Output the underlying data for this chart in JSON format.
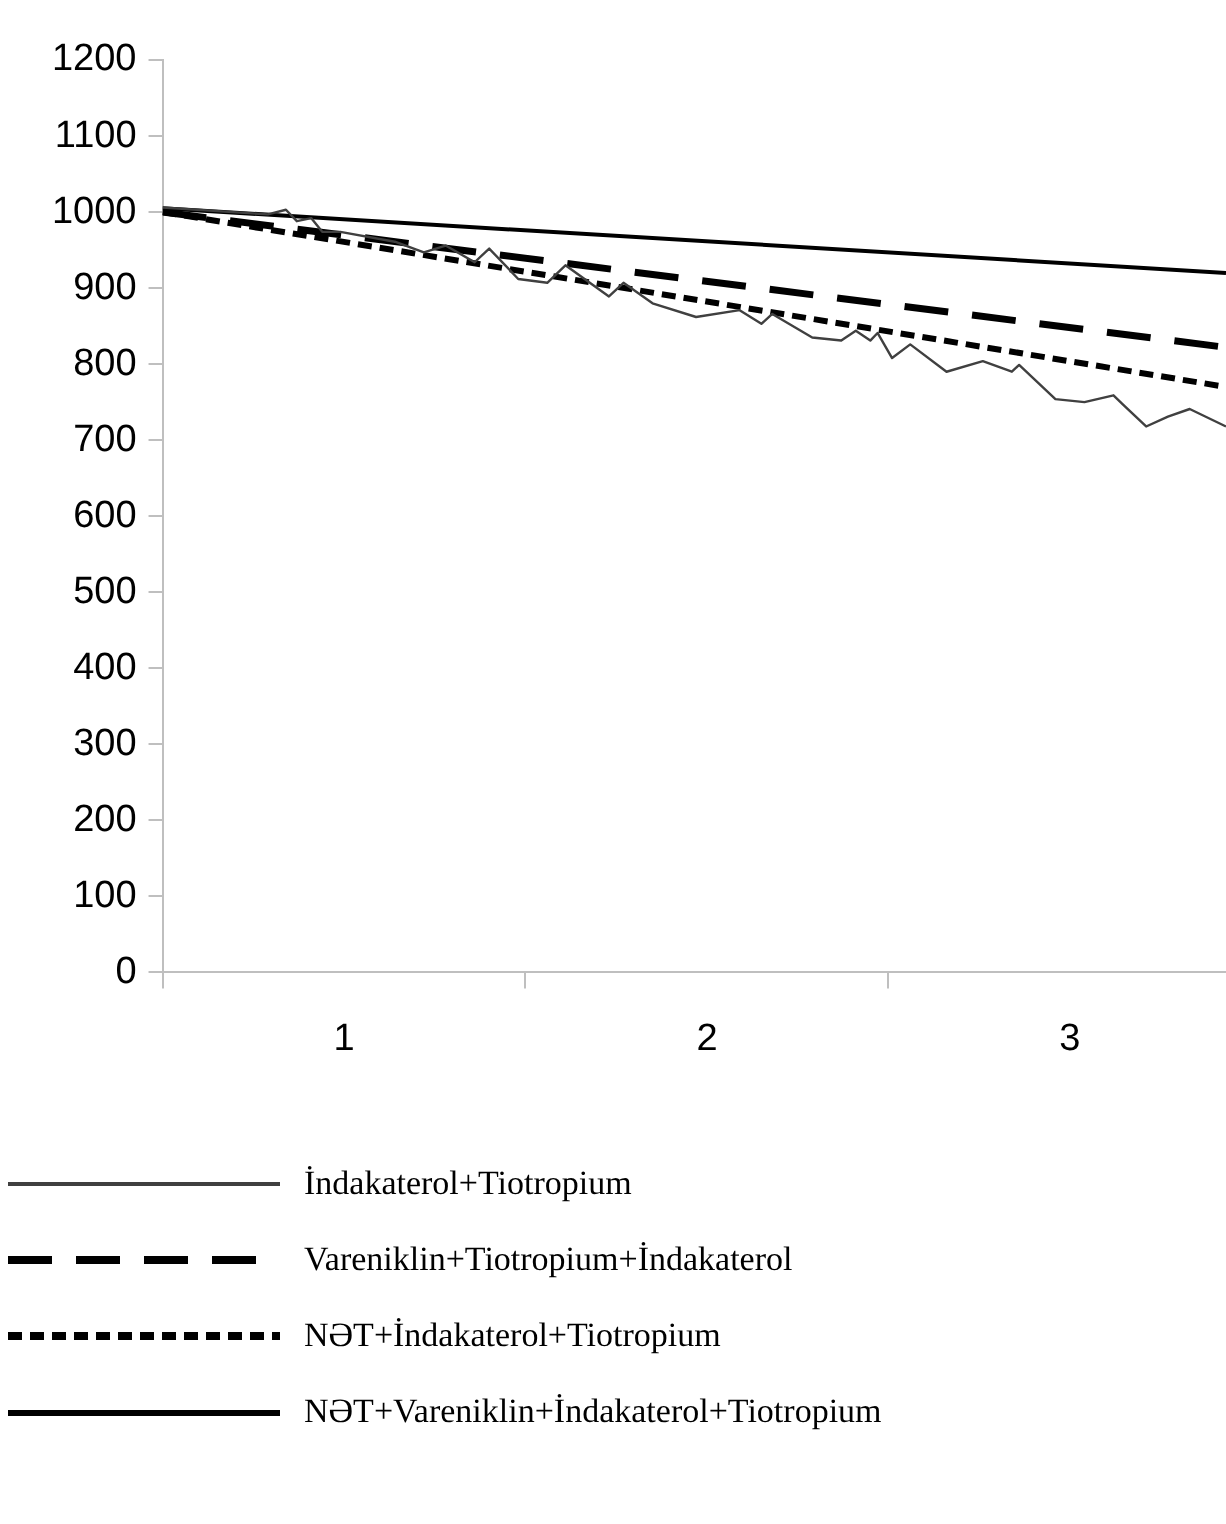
{
  "chart_data": {
    "type": "line",
    "xlim": [
      0.5,
      3.43
    ],
    "xticks": [
      {
        "value": 0.5,
        "label": null
      },
      1,
      {
        "value": 1.5,
        "label": null
      },
      2,
      {
        "value": 2.5,
        "label": null
      },
      3
    ],
    "ylim": [
      0,
      1200
    ],
    "yticks": [
      0,
      100,
      200,
      300,
      400,
      500,
      600,
      700,
      800,
      900,
      1000,
      1100,
      1200
    ],
    "grid": false,
    "legend": "bottom",
    "marker": "none",
    "series": [
      {
        "name": "İndakaterol+Tiotropium",
        "color": "#404040",
        "line_style": "solid",
        "x": [
          0.5,
          0.79,
          0.84,
          0.87,
          0.91,
          0.94,
          0.99,
          1.14,
          1.22,
          1.28,
          1.36,
          1.4,
          1.48,
          1.56,
          1.61,
          1.73,
          1.77,
          1.85,
          1.97,
          2.09,
          2.15,
          2.18,
          2.29,
          2.37,
          2.41,
          2.45,
          2.47,
          2.51,
          2.56,
          2.66,
          2.76,
          2.84,
          2.86,
          2.96,
          3.04,
          3.12,
          3.15,
          3.21,
          3.27,
          3.33,
          3.43
        ],
        "values": [
          1006,
          997,
          1003,
          988,
          992,
          974,
          974,
          961,
          947,
          956,
          934,
          952,
          912,
          907,
          930,
          889,
          907,
          880,
          862,
          871,
          853,
          866,
          835,
          831,
          844,
          831,
          841,
          808,
          826,
          790,
          804,
          790,
          799,
          754,
          750,
          759,
          745,
          718,
          731,
          741,
          718
        ]
      },
      {
        "name": "Vareniklin+Tiotropium+İndakaterol",
        "color": "#000000",
        "line_style": "dashed",
        "x": [
          0.5,
          3.43
        ],
        "values": [
          1000,
          822
        ]
      },
      {
        "name": "NƏT+İndakaterol+Tiotropium",
        "color": "#000000",
        "line_style": "dotted",
        "x": [
          0.5,
          3.43
        ],
        "values": [
          1000,
          770
        ]
      },
      {
        "name": "NƏT+Vareniklin+İndakaterol+Tiotropium",
        "color": "#000000",
        "line_style": "solid",
        "x": [
          0.5,
          3.43
        ],
        "values": [
          1005,
          920
        ]
      }
    ]
  }
}
